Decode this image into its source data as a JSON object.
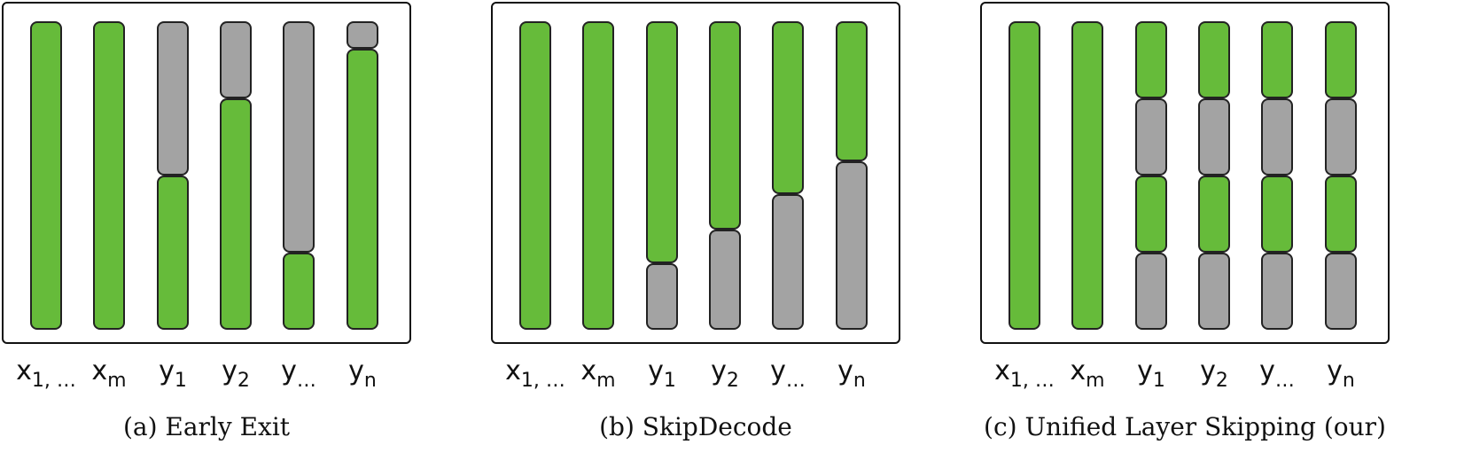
{
  "colors": {
    "active": "#66bb3a",
    "skipped": "#a3a3a3",
    "outline": "#222222"
  },
  "panels": [
    {
      "id": "early-exit",
      "caption": "(a) Early Exit",
      "columns": [
        {
          "base": "x",
          "sub": "1, …",
          "segments": [
            [
              "active",
              1.0
            ]
          ]
        },
        {
          "base": "x",
          "sub": "m",
          "segments": [
            [
              "active",
              1.0
            ]
          ]
        },
        {
          "base": "y",
          "sub": "1",
          "segments": [
            [
              "skipped",
              0.5
            ],
            [
              "active",
              0.5
            ]
          ]
        },
        {
          "base": "y",
          "sub": "2",
          "segments": [
            [
              "skipped",
              0.25
            ],
            [
              "active",
              0.75
            ]
          ]
        },
        {
          "base": "y",
          "sub": "…",
          "segments": [
            [
              "skipped",
              0.75
            ],
            [
              "active",
              0.25
            ]
          ]
        },
        {
          "base": "y",
          "sub": "n",
          "segments": [
            [
              "skipped",
              0.09
            ],
            [
              "active",
              0.91
            ]
          ]
        }
      ]
    },
    {
      "id": "skipdecode",
      "caption": "(b) SkipDecode",
      "columns": [
        {
          "base": "x",
          "sub": "1, …",
          "segments": [
            [
              "active",
              1.0
            ]
          ]
        },
        {
          "base": "x",
          "sub": "m",
          "segments": [
            [
              "active",
              1.0
            ]
          ]
        },
        {
          "base": "y",
          "sub": "1",
          "segments": [
            [
              "active",
              0.785
            ],
            [
              "skipped",
              0.215
            ]
          ]
        },
        {
          "base": "y",
          "sub": "2",
          "segments": [
            [
              "active",
              0.675
            ],
            [
              "skipped",
              0.325
            ]
          ]
        },
        {
          "base": "y",
          "sub": "…",
          "segments": [
            [
              "active",
              0.56
            ],
            [
              "skipped",
              0.44
            ]
          ]
        },
        {
          "base": "y",
          "sub": "n",
          "segments": [
            [
              "active",
              0.455
            ],
            [
              "skipped",
              0.545
            ]
          ]
        }
      ]
    },
    {
      "id": "unified-layer-skipping",
      "caption": "(c) Unified Layer Skipping (our)",
      "columns": [
        {
          "base": "x",
          "sub": "1, …",
          "segments": [
            [
              "active",
              1.0
            ]
          ]
        },
        {
          "base": "x",
          "sub": "m",
          "segments": [
            [
              "active",
              1.0
            ]
          ]
        },
        {
          "base": "y",
          "sub": "1",
          "segments": [
            [
              "active",
              0.25
            ],
            [
              "skipped",
              0.25
            ],
            [
              "active",
              0.25
            ],
            [
              "skipped",
              0.25
            ]
          ]
        },
        {
          "base": "y",
          "sub": "2",
          "segments": [
            [
              "active",
              0.25
            ],
            [
              "skipped",
              0.25
            ],
            [
              "active",
              0.25
            ],
            [
              "skipped",
              0.25
            ]
          ]
        },
        {
          "base": "y",
          "sub": "…",
          "segments": [
            [
              "active",
              0.25
            ],
            [
              "skipped",
              0.25
            ],
            [
              "active",
              0.25
            ],
            [
              "skipped",
              0.25
            ]
          ]
        },
        {
          "base": "y",
          "sub": "n",
          "segments": [
            [
              "active",
              0.25
            ],
            [
              "skipped",
              0.25
            ],
            [
              "active",
              0.25
            ],
            [
              "skipped",
              0.25
            ]
          ]
        }
      ]
    }
  ]
}
